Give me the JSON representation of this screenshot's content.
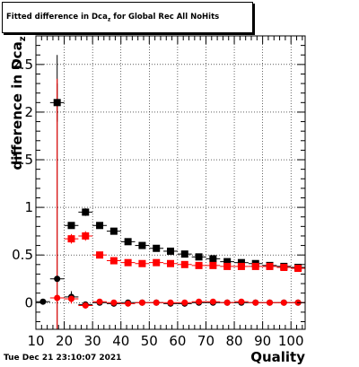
{
  "title": {
    "main": "Fitted difference in Dca",
    "sub": "z",
    "rest": "  for Global Rec All NoHits"
  },
  "timestamp": "Tue Dec 21 23:10:07 2021",
  "chart_data": {
    "type": "scatter",
    "title": "Fitted difference in Dca_z for Global Rec All NoHits",
    "xlabel": "Quality",
    "ylabel": "difference in Dca_z",
    "xlim": [
      10,
      105
    ],
    "ylim": [
      -0.28,
      2.8
    ],
    "grid": true,
    "xticks": [
      10,
      20,
      30,
      40,
      50,
      60,
      70,
      80,
      90,
      100
    ],
    "yticks": [
      0,
      0.5,
      1,
      1.5,
      2,
      2.5
    ],
    "ytick_labels": [
      "0",
      "0.5",
      "1",
      "1.5",
      "2",
      "2.5"
    ],
    "series": [
      {
        "color": "#000000",
        "marker": "square",
        "points": [
          {
            "x": 17.5,
            "y": 2.1,
            "yerr": 0.2
          },
          {
            "x": 22.5,
            "y": 0.81,
            "yerr": 0.03
          },
          {
            "x": 27.5,
            "y": 0.95,
            "yerr": 0.04
          },
          {
            "x": 32.5,
            "y": 0.81,
            "yerr": 0.02
          },
          {
            "x": 37.5,
            "y": 0.75,
            "yerr": 0.02
          },
          {
            "x": 42.5,
            "y": 0.64,
            "yerr": 0.02
          },
          {
            "x": 47.5,
            "y": 0.6,
            "yerr": 0.02
          },
          {
            "x": 52.5,
            "y": 0.57,
            "yerr": 0.02
          },
          {
            "x": 57.5,
            "y": 0.54,
            "yerr": 0.02
          },
          {
            "x": 62.5,
            "y": 0.51,
            "yerr": 0.02
          },
          {
            "x": 67.5,
            "y": 0.48,
            "yerr": 0.02
          },
          {
            "x": 72.5,
            "y": 0.46,
            "yerr": 0.02
          },
          {
            "x": 77.5,
            "y": 0.43,
            "yerr": 0.02
          },
          {
            "x": 82.5,
            "y": 0.42,
            "yerr": 0.02
          },
          {
            "x": 87.5,
            "y": 0.41,
            "yerr": 0.02
          },
          {
            "x": 92.5,
            "y": 0.39,
            "yerr": 0.02
          },
          {
            "x": 97.5,
            "y": 0.38,
            "yerr": 0.02
          },
          {
            "x": 102.5,
            "y": 0.37,
            "yerr": 0.02
          }
        ]
      },
      {
        "color": "#ff0000",
        "marker": "square",
        "points": [
          {
            "x": 22.5,
            "y": 0.67,
            "yerr": 0.05
          },
          {
            "x": 27.5,
            "y": 0.7,
            "yerr": 0.05
          },
          {
            "x": 32.5,
            "y": 0.5,
            "yerr": 0.03
          },
          {
            "x": 37.5,
            "y": 0.44,
            "yerr": 0.03
          },
          {
            "x": 42.5,
            "y": 0.42,
            "yerr": 0.02
          },
          {
            "x": 47.5,
            "y": 0.41,
            "yerr": 0.02
          },
          {
            "x": 52.5,
            "y": 0.42,
            "yerr": 0.02
          },
          {
            "x": 57.5,
            "y": 0.41,
            "yerr": 0.02
          },
          {
            "x": 62.5,
            "y": 0.4,
            "yerr": 0.02
          },
          {
            "x": 67.5,
            "y": 0.39,
            "yerr": 0.02
          },
          {
            "x": 72.5,
            "y": 0.39,
            "yerr": 0.02
          },
          {
            "x": 77.5,
            "y": 0.38,
            "yerr": 0.02
          },
          {
            "x": 82.5,
            "y": 0.38,
            "yerr": 0.02
          },
          {
            "x": 87.5,
            "y": 0.38,
            "yerr": 0.02
          },
          {
            "x": 92.5,
            "y": 0.38,
            "yerr": 0.02
          },
          {
            "x": 97.5,
            "y": 0.37,
            "yerr": 0.02
          },
          {
            "x": 102.5,
            "y": 0.36,
            "yerr": 0.02
          }
        ]
      },
      {
        "color": "#000000",
        "marker": "circle",
        "points": [
          {
            "x": 12.5,
            "y": 0.01,
            "yerr": 0.02
          },
          {
            "x": 17.5,
            "y": 0.25,
            "yerr": 2.35
          },
          {
            "x": 22.5,
            "y": 0.06,
            "yerr": 0.06
          },
          {
            "x": 27.5,
            "y": -0.02,
            "yerr": 0.03
          },
          {
            "x": 32.5,
            "y": 0.0,
            "yerr": 0.02
          },
          {
            "x": 37.5,
            "y": -0.01,
            "yerr": 0.02
          },
          {
            "x": 42.5,
            "y": 0.0,
            "yerr": 0.01
          },
          {
            "x": 47.5,
            "y": 0.0,
            "yerr": 0.01
          },
          {
            "x": 52.5,
            "y": 0.0,
            "yerr": 0.01
          },
          {
            "x": 57.5,
            "y": -0.01,
            "yerr": 0.01
          },
          {
            "x": 62.5,
            "y": -0.01,
            "yerr": 0.01
          },
          {
            "x": 67.5,
            "y": 0.0,
            "yerr": 0.01
          },
          {
            "x": 72.5,
            "y": 0.0,
            "yerr": 0.01
          },
          {
            "x": 77.5,
            "y": 0.0,
            "yerr": 0.01
          },
          {
            "x": 82.5,
            "y": 0.0,
            "yerr": 0.01
          },
          {
            "x": 87.5,
            "y": 0.0,
            "yerr": 0.01
          },
          {
            "x": 92.5,
            "y": 0.0,
            "yerr": 0.01
          },
          {
            "x": 97.5,
            "y": 0.0,
            "yerr": 0.01
          },
          {
            "x": 102.5,
            "y": 0.0,
            "yerr": 0.01
          }
        ]
      },
      {
        "color": "#ff0000",
        "marker": "circle",
        "points": [
          {
            "x": 17.5,
            "y": 0.05,
            "yerr": 2.3
          },
          {
            "x": 22.5,
            "y": 0.04,
            "yerr": 0.05
          },
          {
            "x": 27.5,
            "y": -0.03,
            "yerr": 0.03
          },
          {
            "x": 32.5,
            "y": 0.01,
            "yerr": 0.02
          },
          {
            "x": 37.5,
            "y": 0.0,
            "yerr": 0.02
          },
          {
            "x": 42.5,
            "y": -0.01,
            "yerr": 0.01
          },
          {
            "x": 47.5,
            "y": 0.0,
            "yerr": 0.01
          },
          {
            "x": 52.5,
            "y": 0.0,
            "yerr": 0.01
          },
          {
            "x": 57.5,
            "y": 0.0,
            "yerr": 0.01
          },
          {
            "x": 62.5,
            "y": 0.0,
            "yerr": 0.01
          },
          {
            "x": 67.5,
            "y": 0.01,
            "yerr": 0.01
          },
          {
            "x": 72.5,
            "y": 0.01,
            "yerr": 0.01
          },
          {
            "x": 77.5,
            "y": 0.0,
            "yerr": 0.01
          },
          {
            "x": 82.5,
            "y": 0.01,
            "yerr": 0.01
          },
          {
            "x": 87.5,
            "y": 0.0,
            "yerr": 0.01
          },
          {
            "x": 92.5,
            "y": 0.0,
            "yerr": 0.01
          },
          {
            "x": 97.5,
            "y": 0.0,
            "yerr": 0.01
          },
          {
            "x": 102.5,
            "y": 0.0,
            "yerr": 0.01
          }
        ]
      }
    ]
  }
}
